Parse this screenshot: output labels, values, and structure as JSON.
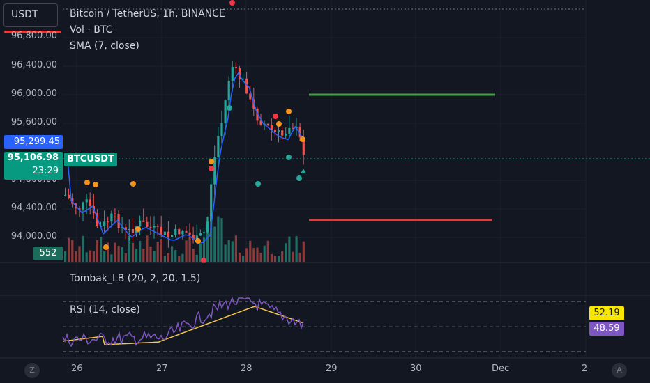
{
  "header": {
    "currency_button": "USDT",
    "symbol_title": "Bitcoin / TetherUS, 1h, BINANCE",
    "volume_label": "Vol · BTC",
    "sma_label": "SMA (7, close)"
  },
  "price_scale": {
    "labels": [
      "96,800.00",
      "96,400.00",
      "96,000.00",
      "95,600.00",
      "94,800.00",
      "94,400.00",
      "94,000.00"
    ],
    "crosshair_price": "95,299.45",
    "last_price": "95,106.98",
    "countdown": "23:29",
    "volume_value": "552"
  },
  "symbol_tag": "BTCUSDT",
  "indicators": {
    "tombak_label": "Tombak_LB (20, 2, 20, 1.5)",
    "rsi_label": "RSI (14, close)",
    "rsi_value_yellow": "52.19",
    "rsi_value_purple": "48.59"
  },
  "time_scale": {
    "labels": [
      "26",
      "27",
      "28",
      "29",
      "30",
      "Dec",
      "2"
    ]
  },
  "controls": {
    "z_button": "Z",
    "a_button": "A"
  },
  "colors": {
    "background": "#131722",
    "up_candle": "#26a69a",
    "down_candle": "#ef5350",
    "sma_line": "#2962ff",
    "rsi_line": "#7e57c2",
    "rsi_ma_line": "#f7c548",
    "target_green": "#43a047",
    "target_red": "#e53935",
    "crosshair_blue": "#2962ff",
    "last_price_green": "#089981"
  }
}
